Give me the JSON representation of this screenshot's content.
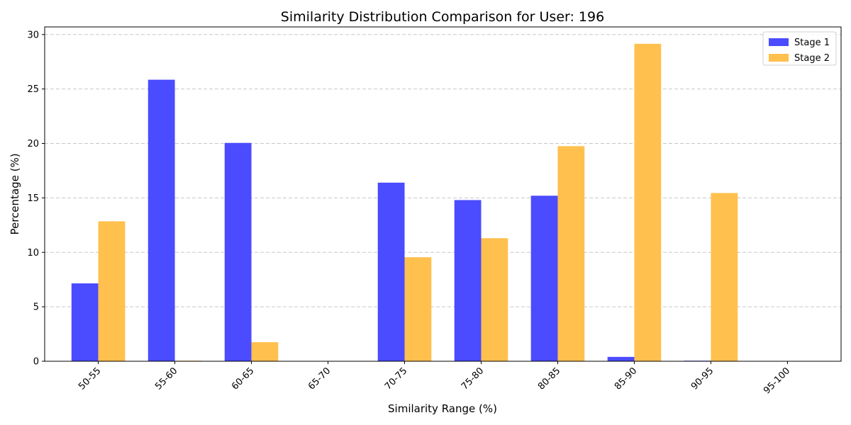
{
  "chart_data": {
    "type": "bar",
    "title": "Similarity Distribution Comparison for User: 196",
    "xlabel": "Similarity Range (%)",
    "ylabel": "Percentage (%)",
    "categories": [
      "50-55",
      "55-60",
      "60-65",
      "65-70",
      "70-75",
      "75-80",
      "80-85",
      "85-90",
      "90-95",
      "95-100"
    ],
    "series": [
      {
        "name": "Stage 1",
        "color": "#4b4bff",
        "values": [
          7.15,
          25.85,
          20.05,
          0,
          16.4,
          14.8,
          15.2,
          0.4,
          0.05,
          0
        ]
      },
      {
        "name": "Stage 2",
        "color": "#ffc04d",
        "values": [
          12.85,
          0.05,
          1.75,
          0,
          9.55,
          11.3,
          19.75,
          29.15,
          15.45,
          0
        ]
      }
    ],
    "ylim": [
      0,
      30.7
    ],
    "yticks": [
      0,
      5,
      10,
      15,
      20,
      25,
      30
    ],
    "grid": "y-dashed",
    "legend_position": "top-right",
    "xtick_rotation": 45
  }
}
